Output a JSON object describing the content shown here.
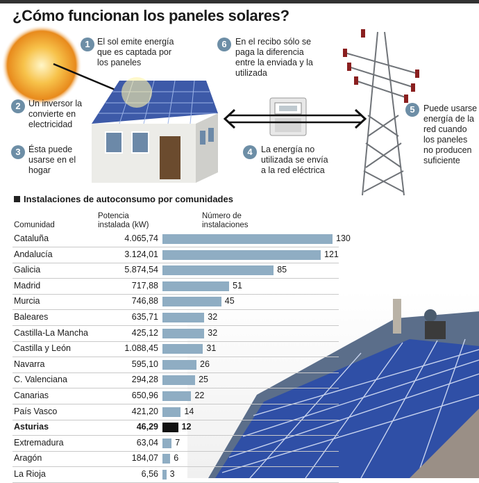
{
  "title": "¿Cómo funcionan los paneles solares?",
  "steps": [
    {
      "n": "1",
      "text": [
        "El sol emite energía",
        "que es captada por",
        "los paneles"
      ]
    },
    {
      "n": "2",
      "text": [
        "Un inversor la",
        "convierte en",
        "electricidad"
      ]
    },
    {
      "n": "3",
      "text": [
        "Ésta puede",
        "usarse en el",
        "hogar"
      ]
    },
    {
      "n": "4",
      "text": [
        "La energía no",
        "utilizada se envía",
        "a la red eléctrica"
      ]
    },
    {
      "n": "5",
      "text": [
        "Puede usarse",
        "energía de la",
        "red cuando",
        "los paneles",
        "no producen",
        "suficiente"
      ]
    },
    {
      "n": "6",
      "text": [
        "En el recibo sólo se",
        "paga la diferencia",
        "entre la enviada y la",
        "utilizada"
      ]
    }
  ],
  "colors": {
    "bar": "#8fadc3",
    "highlight": "#111111",
    "badge": "#6d8ea6"
  },
  "chart_data": {
    "type": "table",
    "title": "Instalaciones de autoconsumo por comunidades",
    "columns": [
      "Comunidad",
      "Potencia instalada (kW)",
      "Número de instalaciones"
    ],
    "rows": [
      {
        "name": "Cataluña",
        "power": "4.065,74",
        "count": 130
      },
      {
        "name": "Andalucía",
        "power": "3.124,01",
        "count": 121
      },
      {
        "name": "Galicia",
        "power": "5.874,54",
        "count": 85
      },
      {
        "name": "Madrid",
        "power": "717,88",
        "count": 51
      },
      {
        "name": "Murcia",
        "power": "746,88",
        "count": 45
      },
      {
        "name": "Baleares",
        "power": "635,71",
        "count": 32
      },
      {
        "name": "Castilla-La Mancha",
        "power": "425,12",
        "count": 32
      },
      {
        "name": "Castilla y León",
        "power": "1.088,45",
        "count": 31
      },
      {
        "name": "Navarra",
        "power": "595,10",
        "count": 26
      },
      {
        "name": "C. Valenciana",
        "power": "294,28",
        "count": 25
      },
      {
        "name": "Canarias",
        "power": "650,96",
        "count": 22
      },
      {
        "name": "País Vasco",
        "power": "421,20",
        "count": 14
      },
      {
        "name": "Asturias",
        "power": "46,29",
        "count": 12,
        "highlight": true
      },
      {
        "name": "Extremadura",
        "power": "63,04",
        "count": 7
      },
      {
        "name": "Aragón",
        "power": "184,07",
        "count": 6
      },
      {
        "name": "La Rioja",
        "power": "6,56",
        "count": 3
      }
    ]
  }
}
